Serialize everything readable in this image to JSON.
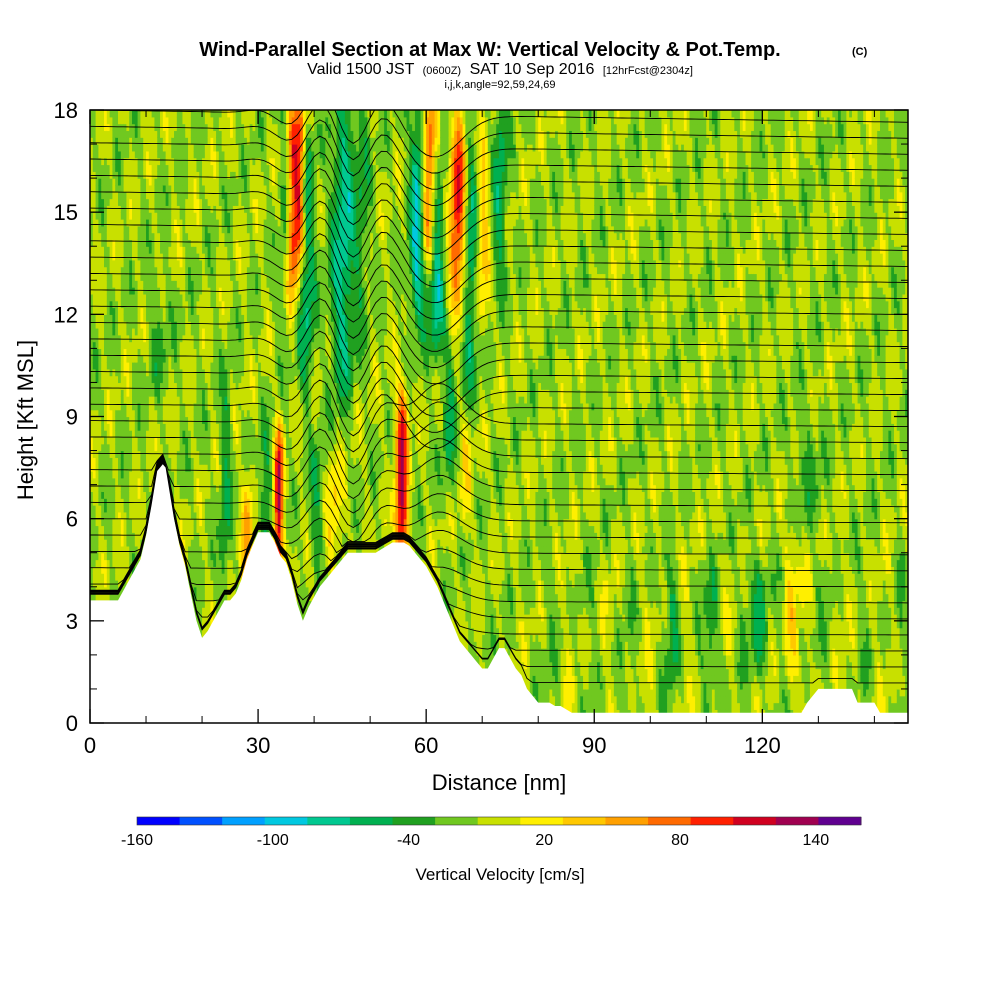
{
  "title": {
    "main": "Wind-Parallel Section at Max W: Vertical Velocity & Pot.Temp.",
    "copyright": "(C)",
    "valid_prefix": "Valid 1500 JST",
    "utc": "(0600Z)",
    "valid_date": "SAT 10 Sep 2016",
    "forecast": "[12hrFcst@2304z]",
    "indices": "i,j,k,angle=92,59,24,69"
  },
  "chart_data": {
    "type": "heatmap",
    "xlabel": "Distance [nm]",
    "ylabel": "Height [Kft MSL]",
    "xlim": [
      0,
      146
    ],
    "ylim": [
      0,
      18
    ],
    "x_ticks": [
      "0",
      "30",
      "60",
      "90",
      "120"
    ],
    "x_tick_values": [
      0,
      30,
      60,
      90,
      120
    ],
    "y_ticks": [
      "0",
      "3",
      "6",
      "9",
      "12",
      "15",
      "18"
    ],
    "y_tick_values": [
      0,
      3,
      6,
      9,
      12,
      15,
      18
    ],
    "x_minor_step": 10,
    "y_minor_step": 1,
    "terrain": {
      "x": [
        0,
        5,
        6,
        7,
        8,
        9,
        10,
        11,
        12,
        13,
        13.5,
        14,
        14.5,
        15,
        15.5,
        16,
        17,
        18,
        19,
        20,
        21,
        22,
        23,
        24,
        25,
        26,
        27,
        28,
        29,
        30,
        31,
        32,
        33,
        34,
        35,
        36,
        37,
        38,
        39,
        40,
        41,
        42,
        43,
        44,
        45,
        46,
        47,
        48,
        49,
        50,
        51,
        52,
        53,
        54,
        55,
        56,
        57,
        58,
        59,
        60,
        61,
        62,
        63,
        64,
        65,
        66,
        67,
        68,
        69,
        70,
        71,
        72,
        73,
        74,
        75,
        76,
        77,
        78,
        79,
        80,
        81,
        82,
        83,
        84,
        85,
        86,
        88,
        90,
        95,
        100,
        105,
        110,
        115,
        120,
        125,
        126,
        127,
        128,
        130,
        132,
        134,
        136,
        137,
        138,
        140,
        141,
        142,
        143,
        144,
        145,
        146
      ],
      "y": [
        3.6,
        3.6,
        3.9,
        4.2,
        4.5,
        4.8,
        5.5,
        6.4,
        7.4,
        7.6,
        7.5,
        7.0,
        6.5,
        6.0,
        5.6,
        5.2,
        4.6,
        3.8,
        3.0,
        2.5,
        2.7,
        3.0,
        3.3,
        3.6,
        3.6,
        3.8,
        4.2,
        4.8,
        5.2,
        5.6,
        5.6,
        5.6,
        5.3,
        4.9,
        4.7,
        4.2,
        3.5,
        3.0,
        3.4,
        3.7,
        4.0,
        4.2,
        4.4,
        4.6,
        4.8,
        5.0,
        5.0,
        5.0,
        5.0,
        5.0,
        5.0,
        5.1,
        5.2,
        5.3,
        5.3,
        5.3,
        5.2,
        5.0,
        4.8,
        4.6,
        4.3,
        4.0,
        3.6,
        3.2,
        2.8,
        2.4,
        2.2,
        2.0,
        1.8,
        1.6,
        1.6,
        1.9,
        2.2,
        2.2,
        1.9,
        1.6,
        1.4,
        1.0,
        0.8,
        0.6,
        0.6,
        0.6,
        0.5,
        0.5,
        0.4,
        0.3,
        0.3,
        0.3,
        0.3,
        0.3,
        0.3,
        0.3,
        0.3,
        0.3,
        0.3,
        0.3,
        0.3,
        0.6,
        1.0,
        1.0,
        1.0,
        1.0,
        0.6,
        0.6,
        0.6,
        0.3,
        0.3,
        0.3,
        0.3,
        0.3,
        0.3
      ]
    },
    "vertical_velocity_features": [
      {
        "x": 33.5,
        "zmin": 3.6,
        "zmax": 8.3,
        "width": 0.8,
        "w": 140
      },
      {
        "x": 36,
        "zmin": 12.5,
        "zmax": 18,
        "width": 1.3,
        "w": 110
      },
      {
        "x": 37.5,
        "zmin": 14,
        "zmax": 18,
        "width": 0.9,
        "w": 90
      },
      {
        "x": 34.8,
        "zmin": 12,
        "zmax": 18,
        "width": 1.0,
        "w": -50
      },
      {
        "x": 38.5,
        "zmin": 10,
        "zmax": 17,
        "width": 1.4,
        "w": -60
      },
      {
        "x": 45,
        "zmin": 10,
        "zmax": 18,
        "width": 2.2,
        "w": -70
      },
      {
        "x": 48.5,
        "zmin": 12,
        "zmax": 18,
        "width": 1.2,
        "w": -30
      },
      {
        "x": 55.5,
        "zmin": 4.5,
        "zmax": 9.5,
        "width": 1.1,
        "w": 140
      },
      {
        "x": 58.5,
        "zmin": 12,
        "zmax": 18,
        "width": 1.5,
        "w": -90
      },
      {
        "x": 60.3,
        "zmin": 14,
        "zmax": 18,
        "width": 1.3,
        "w": 120
      },
      {
        "x": 61.8,
        "zmin": 11,
        "zmax": 16,
        "width": 1.3,
        "w": -70
      },
      {
        "x": 65.5,
        "zmin": 12.5,
        "zmax": 17.5,
        "width": 1.4,
        "w": 120
      },
      {
        "x": 67.8,
        "zmin": 10,
        "zmax": 17,
        "width": 1.3,
        "w": -60
      },
      {
        "x": 73,
        "zmin": 13,
        "zmax": 18,
        "width": 1.3,
        "w": -50
      },
      {
        "x": 70,
        "zmin": 12,
        "zmax": 17,
        "width": 1.3,
        "w": 50
      },
      {
        "x": 31,
        "zmin": 2,
        "zmax": 8,
        "width": 1.1,
        "w": -50
      },
      {
        "x": 28,
        "zmin": 3,
        "zmax": 7,
        "width": 1.1,
        "w": 60
      },
      {
        "x": 24,
        "zmin": 4,
        "zmax": 10,
        "width": 1.0,
        "w": -40
      },
      {
        "x": 40.5,
        "zmin": 5,
        "zmax": 8,
        "width": 1.2,
        "w": -40
      },
      {
        "x": 43.5,
        "zmin": 4.8,
        "zmax": 7.5,
        "width": 1.5,
        "w": 40
      },
      {
        "x": 64,
        "zmin": 7,
        "zmax": 11,
        "width": 1.2,
        "w": -40
      },
      {
        "x": 67,
        "zmin": 6,
        "zmax": 9,
        "width": 1.0,
        "w": 30
      },
      {
        "x": 104,
        "zmin": 1.5,
        "zmax": 4,
        "width": 1.0,
        "w": -40
      },
      {
        "x": 111,
        "zmin": 1.5,
        "zmax": 4,
        "width": 1.3,
        "w": -30
      },
      {
        "x": 119.5,
        "zmin": 1.5,
        "zmax": 4.5,
        "width": 1.7,
        "w": -45
      },
      {
        "x": 125,
        "zmin": 1,
        "zmax": 5.5,
        "width": 1.3,
        "w": 40
      },
      {
        "x": 12,
        "zmin": 10,
        "zmax": 13,
        "width": 2.0,
        "w": -20
      },
      {
        "x": 128,
        "zmin": 6,
        "zmax": 9,
        "width": 2.5,
        "w": -20
      }
    ],
    "contour_label": "Potential temperature contours",
    "colorbar": {
      "label": "Vertical Velocity [cm/s]",
      "levels": [
        -160,
        -140,
        -120,
        -100,
        -80,
        -60,
        -40,
        -20,
        0,
        20,
        40,
        60,
        80,
        100,
        120,
        140,
        160
      ],
      "colors": [
        "#0000ff",
        "#0050ff",
        "#00a0ff",
        "#00c8e0",
        "#00c890",
        "#00b050",
        "#20a020",
        "#70c820",
        "#c8e000",
        "#ffef00",
        "#ffc800",
        "#ffa000",
        "#ff6a00",
        "#ff2000",
        "#d00020",
        "#a00050",
        "#600090"
      ],
      "tick_labels": [
        "-160",
        "-100",
        "-40",
        "20",
        "80",
        "140"
      ],
      "tick_values": [
        -160,
        -100,
        -40,
        20,
        80,
        140
      ]
    }
  }
}
